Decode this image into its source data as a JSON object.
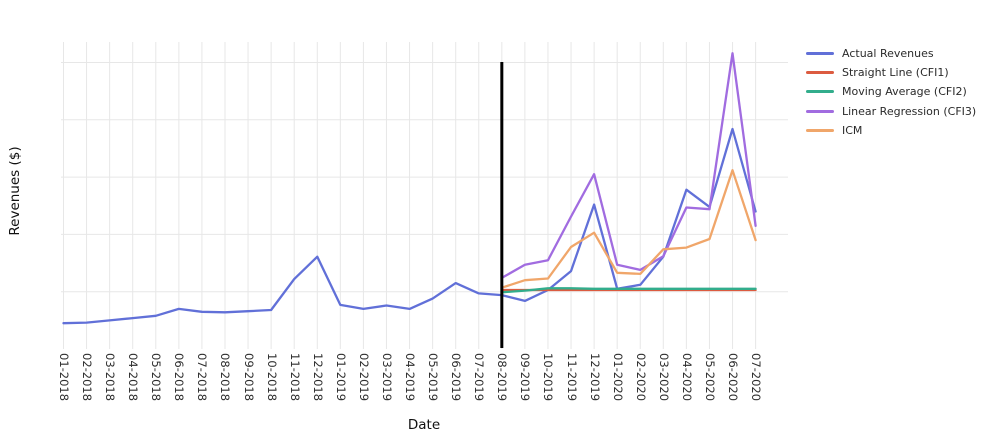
{
  "axes": {
    "x_title": "Date",
    "y_title": "Revenues ($)"
  },
  "chart_data": {
    "type": "line",
    "title": "",
    "xlabel": "Date",
    "ylabel": "Revenues ($)",
    "grid": true,
    "legend_position": "top-right",
    "y_axis": {
      "tick_labels_shown": false,
      "units": "arbitrary (1.0 per gridline)",
      "ylim": [
        0,
        5.3
      ],
      "gridline_values": [
        1,
        2,
        3,
        4,
        5
      ]
    },
    "annotations": [
      {
        "type": "vline",
        "x": "08-2019",
        "color": "#000000",
        "meaning": "forecast start separator"
      }
    ],
    "categories": [
      "01-2018",
      "02-2018",
      "03-2018",
      "04-2018",
      "05-2018",
      "06-2018",
      "07-2018",
      "08-2018",
      "09-2018",
      "10-2018",
      "11-2018",
      "12-2018",
      "01-2019",
      "02-2019",
      "03-2019",
      "04-2019",
      "05-2019",
      "06-2019",
      "07-2019",
      "08-2019",
      "09-2019",
      "10-2019",
      "11-2019",
      "12-2019",
      "01-2020",
      "02-2020",
      "03-2020",
      "04-2020",
      "05-2020",
      "06-2020",
      "07-2020"
    ],
    "series": [
      {
        "name": "Actual Revenues",
        "color": "#6170d8",
        "values": [
          0.45,
          0.46,
          0.5,
          0.54,
          0.58,
          0.7,
          0.65,
          0.64,
          0.66,
          0.68,
          1.22,
          1.61,
          0.77,
          0.7,
          0.76,
          0.7,
          0.88,
          1.15,
          0.97,
          0.94,
          0.84,
          1.03,
          1.36,
          2.52,
          1.05,
          1.12,
          1.61,
          2.78,
          2.48,
          3.84,
          2.4
        ]
      },
      {
        "name": "Straight Line (CFI1)",
        "color": "#dc5b40",
        "values": [
          null,
          null,
          null,
          null,
          null,
          null,
          null,
          null,
          null,
          null,
          null,
          null,
          null,
          null,
          null,
          null,
          null,
          null,
          null,
          1.03,
          1.03,
          1.03,
          1.03,
          1.03,
          1.03,
          1.03,
          1.03,
          1.03,
          1.03,
          1.03,
          1.03
        ]
      },
      {
        "name": "Moving Average (CFI2)",
        "color": "#32ad8c",
        "values": [
          null,
          null,
          null,
          null,
          null,
          null,
          null,
          null,
          null,
          null,
          null,
          null,
          null,
          null,
          null,
          null,
          null,
          null,
          null,
          0.99,
          1.02,
          1.06,
          1.06,
          1.05,
          1.05,
          1.05,
          1.05,
          1.05,
          1.05,
          1.05,
          1.05
        ]
      },
      {
        "name": "Linear Regression (CFI3)",
        "color": "#a16ce0",
        "values": [
          null,
          null,
          null,
          null,
          null,
          null,
          null,
          null,
          null,
          null,
          null,
          null,
          null,
          null,
          null,
          null,
          null,
          null,
          null,
          1.24,
          1.47,
          1.55,
          2.31,
          3.05,
          1.47,
          1.38,
          1.62,
          2.47,
          2.44,
          5.16,
          2.15
        ]
      },
      {
        "name": "ICM",
        "color": "#f0a66a",
        "values": [
          null,
          null,
          null,
          null,
          null,
          null,
          null,
          null,
          null,
          null,
          null,
          null,
          null,
          null,
          null,
          null,
          null,
          null,
          null,
          1.07,
          1.2,
          1.23,
          1.78,
          2.03,
          1.33,
          1.31,
          1.74,
          1.77,
          1.92,
          3.12,
          1.9
        ]
      }
    ]
  }
}
